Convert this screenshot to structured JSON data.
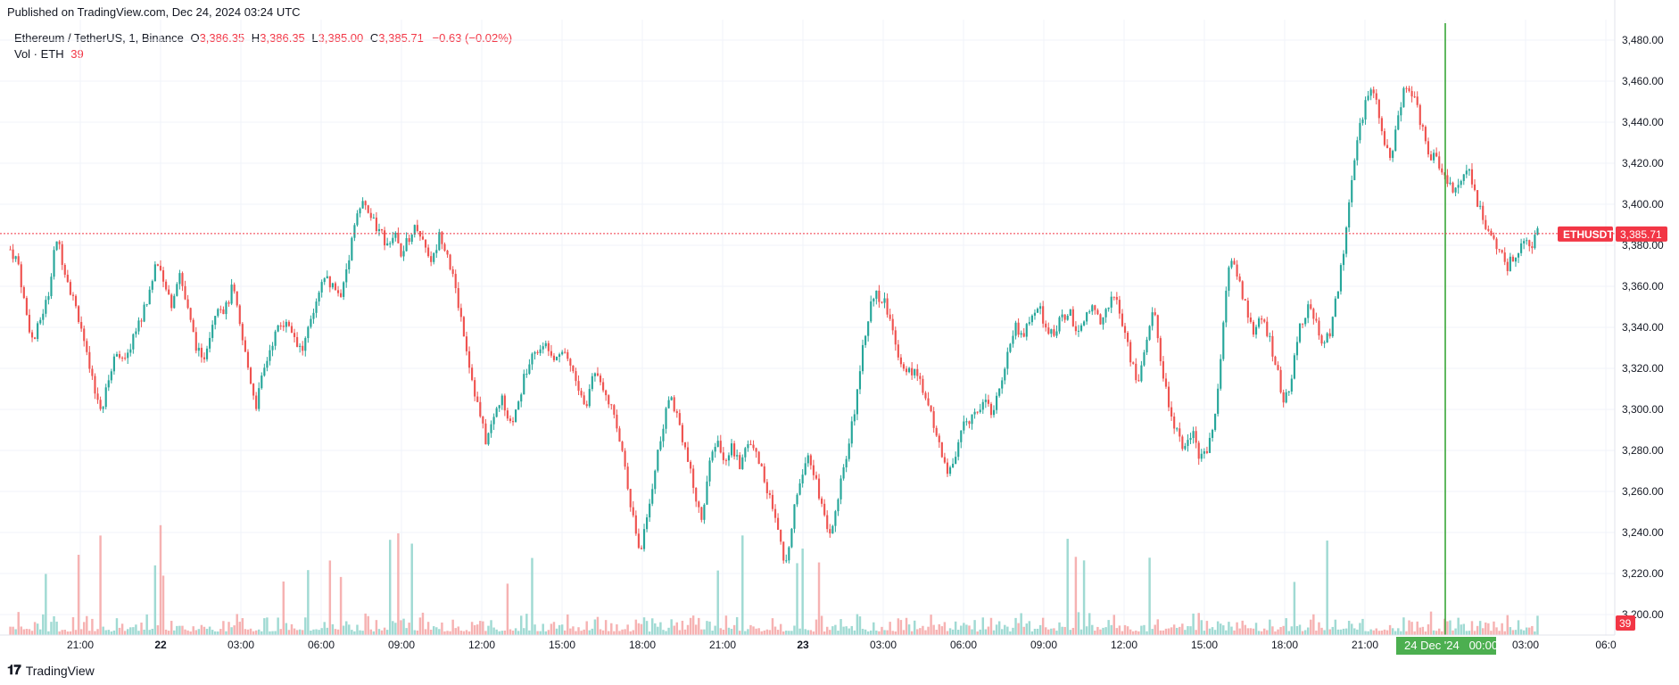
{
  "header": {
    "published": "Published on TradingView.com, Dec 24, 2024 03:24 UTC"
  },
  "legend": {
    "symbol": "Ethereum / TetherUS, 1, Binance",
    "o_label": "O",
    "o_value": "3,386.35",
    "h_label": "H",
    "h_value": "3,386.35",
    "l_label": "L",
    "l_value": "3,385.00",
    "c_label": "C",
    "c_value": "3,385.71",
    "change": "−0.63 (−0.02%)",
    "vol_label": "Vol · ETH",
    "vol_value": "39"
  },
  "footer": {
    "brand": "TradingView"
  },
  "colors": {
    "up": "#26a69a",
    "down": "#ef5350",
    "vol_up": "#8fd3cb",
    "vol_down": "#f5a4a4",
    "grid": "#f0f3fa",
    "last_price": "#f23645",
    "crosshair": "#2ca02c",
    "time_badge": "#4caf50"
  },
  "chart_data": {
    "type": "candlestick",
    "title": "Ethereum / TetherUS, 1, Binance",
    "interval": "1",
    "ylim": [
      3190,
      3490
    ],
    "y_ticks": [
      "3,200.00",
      "3,220.00",
      "3,240.00",
      "3,260.00",
      "3,280.00",
      "3,300.00",
      "3,320.00",
      "3,340.00",
      "3,360.00",
      "3,380.00",
      "3,400.00",
      "3,420.00",
      "3,440.00",
      "3,460.00",
      "3,480.00"
    ],
    "x_ticks": [
      "21:00",
      "22",
      "03:00",
      "06:00",
      "09:00",
      "12:00",
      "15:00",
      "18:00",
      "21:00",
      "23",
      "03:00",
      "06:00",
      "09:00",
      "12:00",
      "15:00",
      "18:00",
      "21:00",
      "00:00",
      "03:00",
      "06:0"
    ],
    "last_price": {
      "label": "ETHUSDT",
      "value": 3385.71,
      "text": "3,385.71"
    },
    "last_volume": {
      "text": "39"
    },
    "crosshair": {
      "time_label": "24 Dec '24   00:00"
    },
    "price_path": [
      [
        0,
        3378
      ],
      [
        2,
        3372
      ],
      [
        4,
        3348
      ],
      [
        6,
        3332
      ],
      [
        8,
        3345
      ],
      [
        10,
        3356
      ],
      [
        12,
        3384
      ],
      [
        14,
        3370
      ],
      [
        16,
        3356
      ],
      [
        18,
        3344
      ],
      [
        20,
        3325
      ],
      [
        22,
        3308
      ],
      [
        24,
        3300
      ],
      [
        26,
        3318
      ],
      [
        28,
        3330
      ],
      [
        30,
        3322
      ],
      [
        32,
        3336
      ],
      [
        34,
        3344
      ],
      [
        36,
        3355
      ],
      [
        38,
        3372
      ],
      [
        40,
        3360
      ],
      [
        42,
        3352
      ],
      [
        44,
        3368
      ],
      [
        46,
        3350
      ],
      [
        48,
        3334
      ],
      [
        50,
        3322
      ],
      [
        52,
        3338
      ],
      [
        54,
        3352
      ],
      [
        56,
        3348
      ],
      [
        58,
        3360
      ],
      [
        60,
        3338
      ],
      [
        62,
        3320
      ],
      [
        64,
        3302
      ],
      [
        66,
        3318
      ],
      [
        68,
        3332
      ],
      [
        70,
        3340
      ],
      [
        72,
        3344
      ],
      [
        74,
        3336
      ],
      [
        76,
        3328
      ],
      [
        78,
        3340
      ],
      [
        80,
        3352
      ],
      [
        82,
        3365
      ],
      [
        84,
        3360
      ],
      [
        86,
        3355
      ],
      [
        88,
        3372
      ],
      [
        90,
        3395
      ],
      [
        92,
        3400
      ],
      [
        94,
        3394
      ],
      [
        96,
        3386
      ],
      [
        98,
        3382
      ],
      [
        100,
        3386
      ],
      [
        102,
        3376
      ],
      [
        104,
        3384
      ],
      [
        106,
        3390
      ],
      [
        108,
        3380
      ],
      [
        110,
        3372
      ],
      [
        112,
        3386
      ],
      [
        114,
        3376
      ],
      [
        116,
        3358
      ],
      [
        118,
        3340
      ],
      [
        120,
        3318
      ],
      [
        122,
        3300
      ],
      [
        124,
        3284
      ],
      [
        126,
        3296
      ],
      [
        128,
        3306
      ],
      [
        130,
        3290
      ],
      [
        132,
        3300
      ],
      [
        134,
        3316
      ],
      [
        136,
        3330
      ],
      [
        138,
        3328
      ],
      [
        140,
        3332
      ],
      [
        142,
        3326
      ],
      [
        144,
        3330
      ],
      [
        146,
        3322
      ],
      [
        148,
        3310
      ],
      [
        150,
        3300
      ],
      [
        152,
        3320
      ],
      [
        154,
        3314
      ],
      [
        156,
        3305
      ],
      [
        158,
        3290
      ],
      [
        160,
        3276
      ],
      [
        162,
        3250
      ],
      [
        164,
        3230
      ],
      [
        166,
        3246
      ],
      [
        168,
        3272
      ],
      [
        170,
        3290
      ],
      [
        172,
        3308
      ],
      [
        174,
        3296
      ],
      [
        176,
        3280
      ],
      [
        178,
        3262
      ],
      [
        180,
        3246
      ],
      [
        182,
        3270
      ],
      [
        184,
        3286
      ],
      [
        186,
        3276
      ],
      [
        188,
        3282
      ],
      [
        190,
        3272
      ],
      [
        192,
        3286
      ],
      [
        194,
        3280
      ],
      [
        196,
        3270
      ],
      [
        198,
        3256
      ],
      [
        200,
        3240
      ],
      [
        202,
        3222
      ],
      [
        204,
        3250
      ],
      [
        206,
        3268
      ],
      [
        208,
        3280
      ],
      [
        210,
        3266
      ],
      [
        212,
        3248
      ],
      [
        214,
        3238
      ],
      [
        216,
        3262
      ],
      [
        218,
        3276
      ],
      [
        220,
        3300
      ],
      [
        222,
        3330
      ],
      [
        224,
        3350
      ],
      [
        226,
        3356
      ],
      [
        228,
        3352
      ],
      [
        230,
        3338
      ],
      [
        232,
        3324
      ],
      [
        234,
        3318
      ],
      [
        236,
        3320
      ],
      [
        238,
        3306
      ],
      [
        240,
        3298
      ],
      [
        242,
        3284
      ],
      [
        244,
        3268
      ],
      [
        246,
        3276
      ],
      [
        248,
        3290
      ],
      [
        250,
        3296
      ],
      [
        252,
        3300
      ],
      [
        254,
        3306
      ],
      [
        256,
        3298
      ],
      [
        258,
        3310
      ],
      [
        260,
        3330
      ],
      [
        262,
        3340
      ],
      [
        264,
        3336
      ],
      [
        266,
        3344
      ],
      [
        268,
        3350
      ],
      [
        270,
        3340
      ],
      [
        272,
        3338
      ],
      [
        274,
        3344
      ],
      [
        276,
        3348
      ],
      [
        278,
        3338
      ],
      [
        280,
        3344
      ],
      [
        282,
        3350
      ],
      [
        284,
        3344
      ],
      [
        286,
        3350
      ],
      [
        288,
        3356
      ],
      [
        290,
        3340
      ],
      [
        292,
        3325
      ],
      [
        294,
        3312
      ],
      [
        296,
        3334
      ],
      [
        298,
        3348
      ],
      [
        300,
        3322
      ],
      [
        302,
        3300
      ],
      [
        304,
        3290
      ],
      [
        306,
        3280
      ],
      [
        308,
        3290
      ],
      [
        310,
        3276
      ],
      [
        312,
        3282
      ],
      [
        314,
        3296
      ],
      [
        316,
        3340
      ],
      [
        318,
        3376
      ],
      [
        320,
        3364
      ],
      [
        322,
        3350
      ],
      [
        324,
        3338
      ],
      [
        326,
        3344
      ],
      [
        328,
        3336
      ],
      [
        330,
        3320
      ],
      [
        332,
        3302
      ],
      [
        334,
        3316
      ],
      [
        336,
        3340
      ],
      [
        338,
        3350
      ],
      [
        340,
        3344
      ],
      [
        342,
        3330
      ],
      [
        344,
        3338
      ],
      [
        346,
        3360
      ],
      [
        348,
        3384
      ],
      [
        350,
        3418
      ],
      [
        352,
        3440
      ],
      [
        354,
        3456
      ],
      [
        356,
        3452
      ],
      [
        358,
        3430
      ],
      [
        360,
        3424
      ],
      [
        362,
        3446
      ],
      [
        364,
        3460
      ],
      [
        366,
        3452
      ],
      [
        368,
        3436
      ],
      [
        370,
        3424
      ],
      [
        372,
        3420
      ],
      [
        374,
        3412
      ],
      [
        376,
        3406
      ],
      [
        378,
        3414
      ],
      [
        380,
        3418
      ],
      [
        382,
        3404
      ],
      [
        384,
        3390
      ],
      [
        386,
        3384
      ],
      [
        388,
        3378
      ],
      [
        390,
        3368
      ],
      [
        392,
        3376
      ],
      [
        394,
        3382
      ],
      [
        396,
        3378
      ],
      [
        398,
        3386
      ]
    ]
  }
}
